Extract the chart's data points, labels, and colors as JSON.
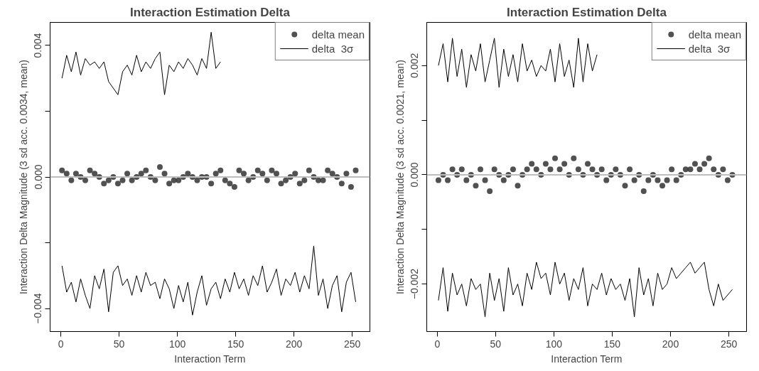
{
  "chart_data": [
    {
      "type": "scatter",
      "title": "Interaction Estimation Delta",
      "xlabel": "Interaction Term",
      "ylabel": "Interaction Delta Magnitude (3 sd acc. 0.0034, mean)",
      "x": [
        1,
        5,
        9,
        13,
        17,
        21,
        25,
        29,
        33,
        37,
        41,
        45,
        49,
        53,
        57,
        61,
        65,
        69,
        73,
        77,
        81,
        85,
        89,
        93,
        97,
        101,
        105,
        109,
        113,
        117,
        121,
        125,
        129,
        133,
        137,
        141,
        145,
        149,
        153,
        157,
        161,
        165,
        169,
        173,
        177,
        181,
        185,
        189,
        193,
        197,
        201,
        205,
        209,
        213,
        217,
        221,
        225,
        229,
        233,
        237,
        241,
        245,
        249,
        253
      ],
      "xlim": [
        -9.2,
        265.2
      ],
      "xticks": [
        0,
        50,
        100,
        150,
        200,
        250
      ],
      "ylim": [
        -0.0047,
        0.0047
      ],
      "yticks": [
        {
          "value": -0.004,
          "label": "−0.004"
        },
        {
          "value": -0.002,
          "label": null
        },
        {
          "value": 0,
          "label": "0.000"
        },
        {
          "value": 0.002,
          "label": null
        },
        {
          "value": 0.004,
          "label": "0.004"
        }
      ],
      "grid": false,
      "legend": "top right",
      "ref_lines": [
        {
          "axis": "y",
          "value": 0,
          "color": "#bebebe"
        }
      ],
      "series": [
        {
          "name": "delta mean",
          "marker": "circle",
          "color": "#333333",
          "values": [
            0.0002,
            0.0001,
            -0.0001,
            0.0001,
            0.0,
            -0.0001,
            0.0002,
            0.0001,
            0.0,
            -0.0002,
            -0.0001,
            0.0,
            -0.0002,
            -0.0001,
            0.0001,
            -0.0001,
            0.0,
            0.0001,
            0.0002,
            0.0,
            -0.0001,
            0.0003,
            0.0001,
            -0.0002,
            -0.0001,
            -0.0001,
            0.0,
            0.0001,
            0.0,
            -0.0001,
            0.0,
            0.0,
            -0.0002,
            0.0001,
            0.0002,
            -0.0001,
            -0.0002,
            -0.0003,
            0.0002,
            0.0001,
            -0.0001,
            0.0,
            0.0002,
            0.0001,
            -0.0001,
            0.0002,
            0.0001,
            -0.0002,
            -0.0001,
            0.0,
            0.0001,
            -0.0002,
            -0.0001,
            0.0002,
            0.0,
            -0.0001,
            -0.0001,
            0.0002,
            0.0001,
            0.0,
            -0.0002,
            0.0001,
            -0.0003,
            0.0002
          ]
        },
        {
          "name": "delta  3σ",
          "type": "line",
          "color": "#000000",
          "values": [
            0.003,
            0.0037,
            0.0032,
            0.0038,
            0.0031,
            0.0036,
            0.0034,
            0.0035,
            0.0033,
            0.0035,
            0.0029,
            0.0027,
            0.0025,
            0.0032,
            0.0034,
            0.0031,
            0.0037,
            0.0032,
            0.0035,
            0.0033,
            0.0036,
            0.0038,
            0.0025,
            0.0034,
            0.0032,
            0.0035,
            0.0033,
            0.0036,
            0.0034,
            0.0031,
            0.0036,
            0.0033,
            0.0044,
            0.0033,
            0.0035,
            null,
            null,
            null,
            null,
            null,
            null,
            null,
            null,
            null,
            null,
            null,
            null,
            null,
            null,
            null,
            null,
            null,
            null,
            null,
            null,
            null,
            null,
            null,
            null,
            null,
            null,
            null,
            null,
            null
          ]
        },
        {
          "type": "line",
          "color": "#000000",
          "values": [
            -0.0027,
            -0.0035,
            -0.0032,
            -0.0038,
            -0.0031,
            -0.0036,
            -0.004,
            -0.003,
            -0.0034,
            -0.0028,
            -0.0041,
            -0.0029,
            -0.0027,
            -0.0033,
            -0.0031,
            -0.0036,
            -0.003,
            -0.0035,
            -0.0029,
            -0.0033,
            -0.0032,
            -0.0037,
            -0.0031,
            -0.0034,
            -0.004,
            -0.0033,
            -0.0038,
            -0.0032,
            -0.0042,
            -0.0035,
            -0.003,
            -0.0039,
            -0.0034,
            -0.0032,
            -0.0037,
            -0.0031,
            -0.0035,
            -0.0029,
            -0.0034,
            -0.0031,
            -0.0036,
            -0.003,
            -0.0033,
            -0.0027,
            -0.0035,
            -0.0032,
            -0.0028,
            -0.0036,
            -0.0031,
            -0.0033,
            -0.0029,
            -0.0035,
            -0.003,
            -0.0034,
            -0.0021,
            -0.0036,
            -0.0031,
            -0.004,
            -0.0033,
            -0.003,
            -0.0041,
            -0.0032,
            -0.0029,
            -0.0038
          ]
        }
      ]
    },
    {
      "type": "scatter",
      "title": "Interaction Estimation Delta",
      "xlabel": "Interaction Term",
      "ylabel": "Interaction Delta Magnitude (3 sd acc. 0.0021, mean)",
      "x": [
        1,
        5,
        9,
        13,
        17,
        21,
        25,
        29,
        33,
        37,
        41,
        45,
        49,
        53,
        57,
        61,
        65,
        69,
        73,
        77,
        81,
        85,
        89,
        93,
        97,
        101,
        105,
        109,
        113,
        117,
        121,
        125,
        129,
        133,
        137,
        141,
        145,
        149,
        153,
        157,
        161,
        165,
        169,
        173,
        177,
        181,
        185,
        189,
        193,
        197,
        201,
        205,
        209,
        213,
        217,
        221,
        225,
        229,
        233,
        237,
        241,
        245,
        249,
        253
      ],
      "xlim": [
        -9.0,
        265.2
      ],
      "xticks": [
        0,
        50,
        100,
        150,
        200,
        250
      ],
      "ylim": [
        -0.00287,
        0.00279
      ],
      "yticks": [
        {
          "value": -0.002,
          "label": "−0.002"
        },
        {
          "value": -0.001,
          "label": null
        },
        {
          "value": 0,
          "label": "0.000"
        },
        {
          "value": 0.001,
          "label": null
        },
        {
          "value": 0.002,
          "label": "0.002"
        }
      ],
      "grid": false,
      "legend": "top right",
      "ref_lines": [
        {
          "axis": "y",
          "value": 0,
          "color": "#bebebe"
        }
      ],
      "series": [
        {
          "name": "delta mean",
          "marker": "circle",
          "color": "#333333",
          "values": [
            -0.0001,
            0.0,
            -0.0001,
            0.0001,
            0.0,
            0.0001,
            -0.0001,
            0.0,
            -0.0002,
            0.0001,
            -0.0001,
            -0.0003,
            0.0001,
            0.0,
            -0.0001,
            0.0,
            0.0001,
            -0.0002,
            0.0,
            0.0001,
            0.0002,
            0.0001,
            0.0,
            0.0002,
            0.0001,
            0.0003,
            0.0001,
            0.0002,
            0.0,
            0.0003,
            0.0001,
            0.0,
            0.0002,
            0.0001,
            0.0,
            0.0001,
            -0.0001,
            0.0,
            0.0001,
            0.0,
            -0.0002,
            0.0001,
            -0.0001,
            0.0,
            -0.0003,
            -0.0001,
            0.0,
            -0.0001,
            -0.0002,
            -0.0001,
            0.0001,
            -0.0001,
            0.0,
            0.0001,
            0.0001,
            0.0002,
            0.0001,
            0.0002,
            0.0003,
            0.0001,
            0.0,
            0.0001,
            -0.0001,
            0.0
          ]
        },
        {
          "name": "delta  3σ",
          "type": "line",
          "color": "#000000",
          "values": [
            0.002,
            0.0024,
            0.0017,
            0.0025,
            0.0018,
            0.0023,
            0.0016,
            0.0022,
            0.0019,
            0.0024,
            0.0017,
            0.0021,
            0.0025,
            0.0016,
            0.0023,
            0.0018,
            0.0022,
            0.0017,
            0.0024,
            0.0019,
            0.0021,
            0.0018,
            0.002,
            0.0019,
            0.0023,
            0.0017,
            0.0024,
            0.0018,
            0.0021,
            0.0016,
            0.0025,
            0.0017,
            0.0024,
            0.0019,
            0.0022,
            null,
            null,
            null,
            null,
            null,
            null,
            null,
            null,
            null,
            null,
            null,
            null,
            null,
            null,
            null,
            null,
            null,
            null,
            null,
            null,
            null,
            null,
            null,
            null,
            null,
            null,
            null,
            null,
            null
          ]
        },
        {
          "type": "line",
          "color": "#000000",
          "values": [
            -0.0023,
            -0.0017,
            -0.0025,
            -0.0018,
            -0.0022,
            -0.002,
            -0.0024,
            -0.0019,
            -0.0021,
            -0.002,
            -0.0026,
            -0.0018,
            -0.0023,
            -0.0019,
            -0.0025,
            -0.0017,
            -0.0022,
            -0.002,
            -0.0024,
            -0.0018,
            -0.0021,
            -0.0016,
            -0.0019,
            -0.0018,
            -0.0022,
            -0.0016,
            -0.002,
            -0.0018,
            -0.0023,
            -0.0019,
            -0.0021,
            -0.0017,
            -0.0024,
            -0.002,
            -0.0021,
            -0.0018,
            -0.0022,
            -0.0019,
            -0.0021,
            -0.002,
            -0.0023,
            -0.0019,
            -0.0026,
            -0.0017,
            -0.0022,
            -0.0019,
            -0.0024,
            -0.0018,
            -0.0021,
            -0.002,
            -0.0017,
            -0.0019,
            -0.0018,
            -0.0017,
            -0.0016,
            -0.0018,
            -0.0017,
            -0.0016,
            -0.0021,
            -0.0024,
            -0.002,
            -0.0023,
            -0.0022,
            -0.0021
          ]
        }
      ]
    }
  ]
}
